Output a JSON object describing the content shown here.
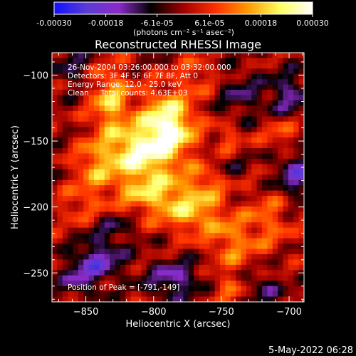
{
  "colorbar": {
    "ticks": [
      "-0.00030",
      "-0.00018",
      "-6.1e-05",
      "6.1e-05",
      "0.00018",
      "0.00030"
    ],
    "tick_values": [
      -0.0003,
      -0.00018,
      -6.1e-05,
      6.1e-05,
      0.00018,
      0.0003
    ],
    "range": [
      -0.0003,
      0.0003
    ],
    "units": "(photons cm⁻² s⁻¹ asec⁻²)",
    "colors": [
      "#1010ff",
      "#5a3cd4",
      "#8b2ac8",
      "#000000",
      "#a00000",
      "#ff3000",
      "#ff9a00",
      "#ffff60",
      "#ffffff"
    ]
  },
  "chart_data": {
    "type": "heatmap",
    "title": "Reconstructed RHESSI Image",
    "xlabel": "Heliocentric X (arcsec)",
    "ylabel": "Heliocentric Y (arcsec)",
    "xlim": [
      -875,
      -689
    ],
    "ylim": [
      -272,
      -83
    ],
    "xticks": [
      -850,
      -800,
      -750,
      -700
    ],
    "yticks": [
      -100,
      -150,
      -200,
      -250
    ],
    "xtick_labels": [
      "−850",
      "−800",
      "−750",
      "−700"
    ],
    "ytick_labels": [
      "−100",
      "−150",
      "−200",
      "−250"
    ],
    "value_range": [
      -0.0003,
      0.0003
    ],
    "grid": false,
    "peak": [
      -791,
      -149
    ],
    "sources": [
      {
        "x": -790,
        "y": -140,
        "amp": 0.0003,
        "sx": 14,
        "sy": 18
      },
      {
        "x": -815,
        "y": -160,
        "amp": 0.00022,
        "sx": 16,
        "sy": 14
      },
      {
        "x": -832,
        "y": -120,
        "amp": 0.00018,
        "sx": 10,
        "sy": 18
      },
      {
        "x": -800,
        "y": -190,
        "amp": 0.00017,
        "sx": 20,
        "sy": 12
      },
      {
        "x": -770,
        "y": -205,
        "amp": 0.00015,
        "sx": 16,
        "sy": 12
      },
      {
        "x": -845,
        "y": -170,
        "amp": 0.00012,
        "sx": 10,
        "sy": 14
      },
      {
        "x": -760,
        "y": -180,
        "amp": 0.0001,
        "sx": 10,
        "sy": 10
      },
      {
        "x": -745,
        "y": -150,
        "amp": 0.00011,
        "sx": 8,
        "sy": 8
      },
      {
        "x": -705,
        "y": -145,
        "amp": 9e-05,
        "sx": 10,
        "sy": 10
      },
      {
        "x": -742,
        "y": -228,
        "amp": 0.00012,
        "sx": 12,
        "sy": 14
      },
      {
        "x": -715,
        "y": -210,
        "amp": 0.0001,
        "sx": 12,
        "sy": 16
      },
      {
        "x": -745,
        "y": -262,
        "amp": 9e-05,
        "sx": 10,
        "sy": 8
      },
      {
        "x": -855,
        "y": -200,
        "amp": 8e-05,
        "sx": 12,
        "sy": 10
      },
      {
        "x": -768,
        "y": -100,
        "amp": 8e-05,
        "sx": 10,
        "sy": 10
      },
      {
        "x": -735,
        "y": -115,
        "amp": -9e-05,
        "sx": 12,
        "sy": 12
      },
      {
        "x": -700,
        "y": -115,
        "amp": -0.00013,
        "sx": 10,
        "sy": 12
      },
      {
        "x": -695,
        "y": -175,
        "amp": -0.00016,
        "sx": 10,
        "sy": 12
      },
      {
        "x": -840,
        "y": -240,
        "amp": -0.00016,
        "sx": 12,
        "sy": 10
      },
      {
        "x": -785,
        "y": -255,
        "amp": -0.00015,
        "sx": 14,
        "sy": 10
      },
      {
        "x": -855,
        "y": -255,
        "amp": -0.00011,
        "sx": 10,
        "sy": 10
      },
      {
        "x": -720,
        "y": -262,
        "amp": -0.0001,
        "sx": 10,
        "sy": 8
      },
      {
        "x": -830,
        "y": -215,
        "amp": -8e-05,
        "sx": 12,
        "sy": 8
      },
      {
        "x": -745,
        "y": -165,
        "amp": -6e-05,
        "sx": 10,
        "sy": 10
      },
      {
        "x": -860,
        "y": -95,
        "amp": -8e-05,
        "sx": 10,
        "sy": 10
      }
    ]
  },
  "overlay": {
    "lines": [
      "26-Nov-2004 03:26:00.000 to 03:32:00.000",
      "Detectors: 3F 4F 5F 6F 7F 8F, Att 0",
      "Energy Range: 12.0 - 25.0 keV",
      "Clean     Total counts: 4.63E+03"
    ],
    "peak_label": "Position of Peak = [-791,-149]"
  },
  "footer": {
    "date": "5-May-2022 06:28"
  }
}
